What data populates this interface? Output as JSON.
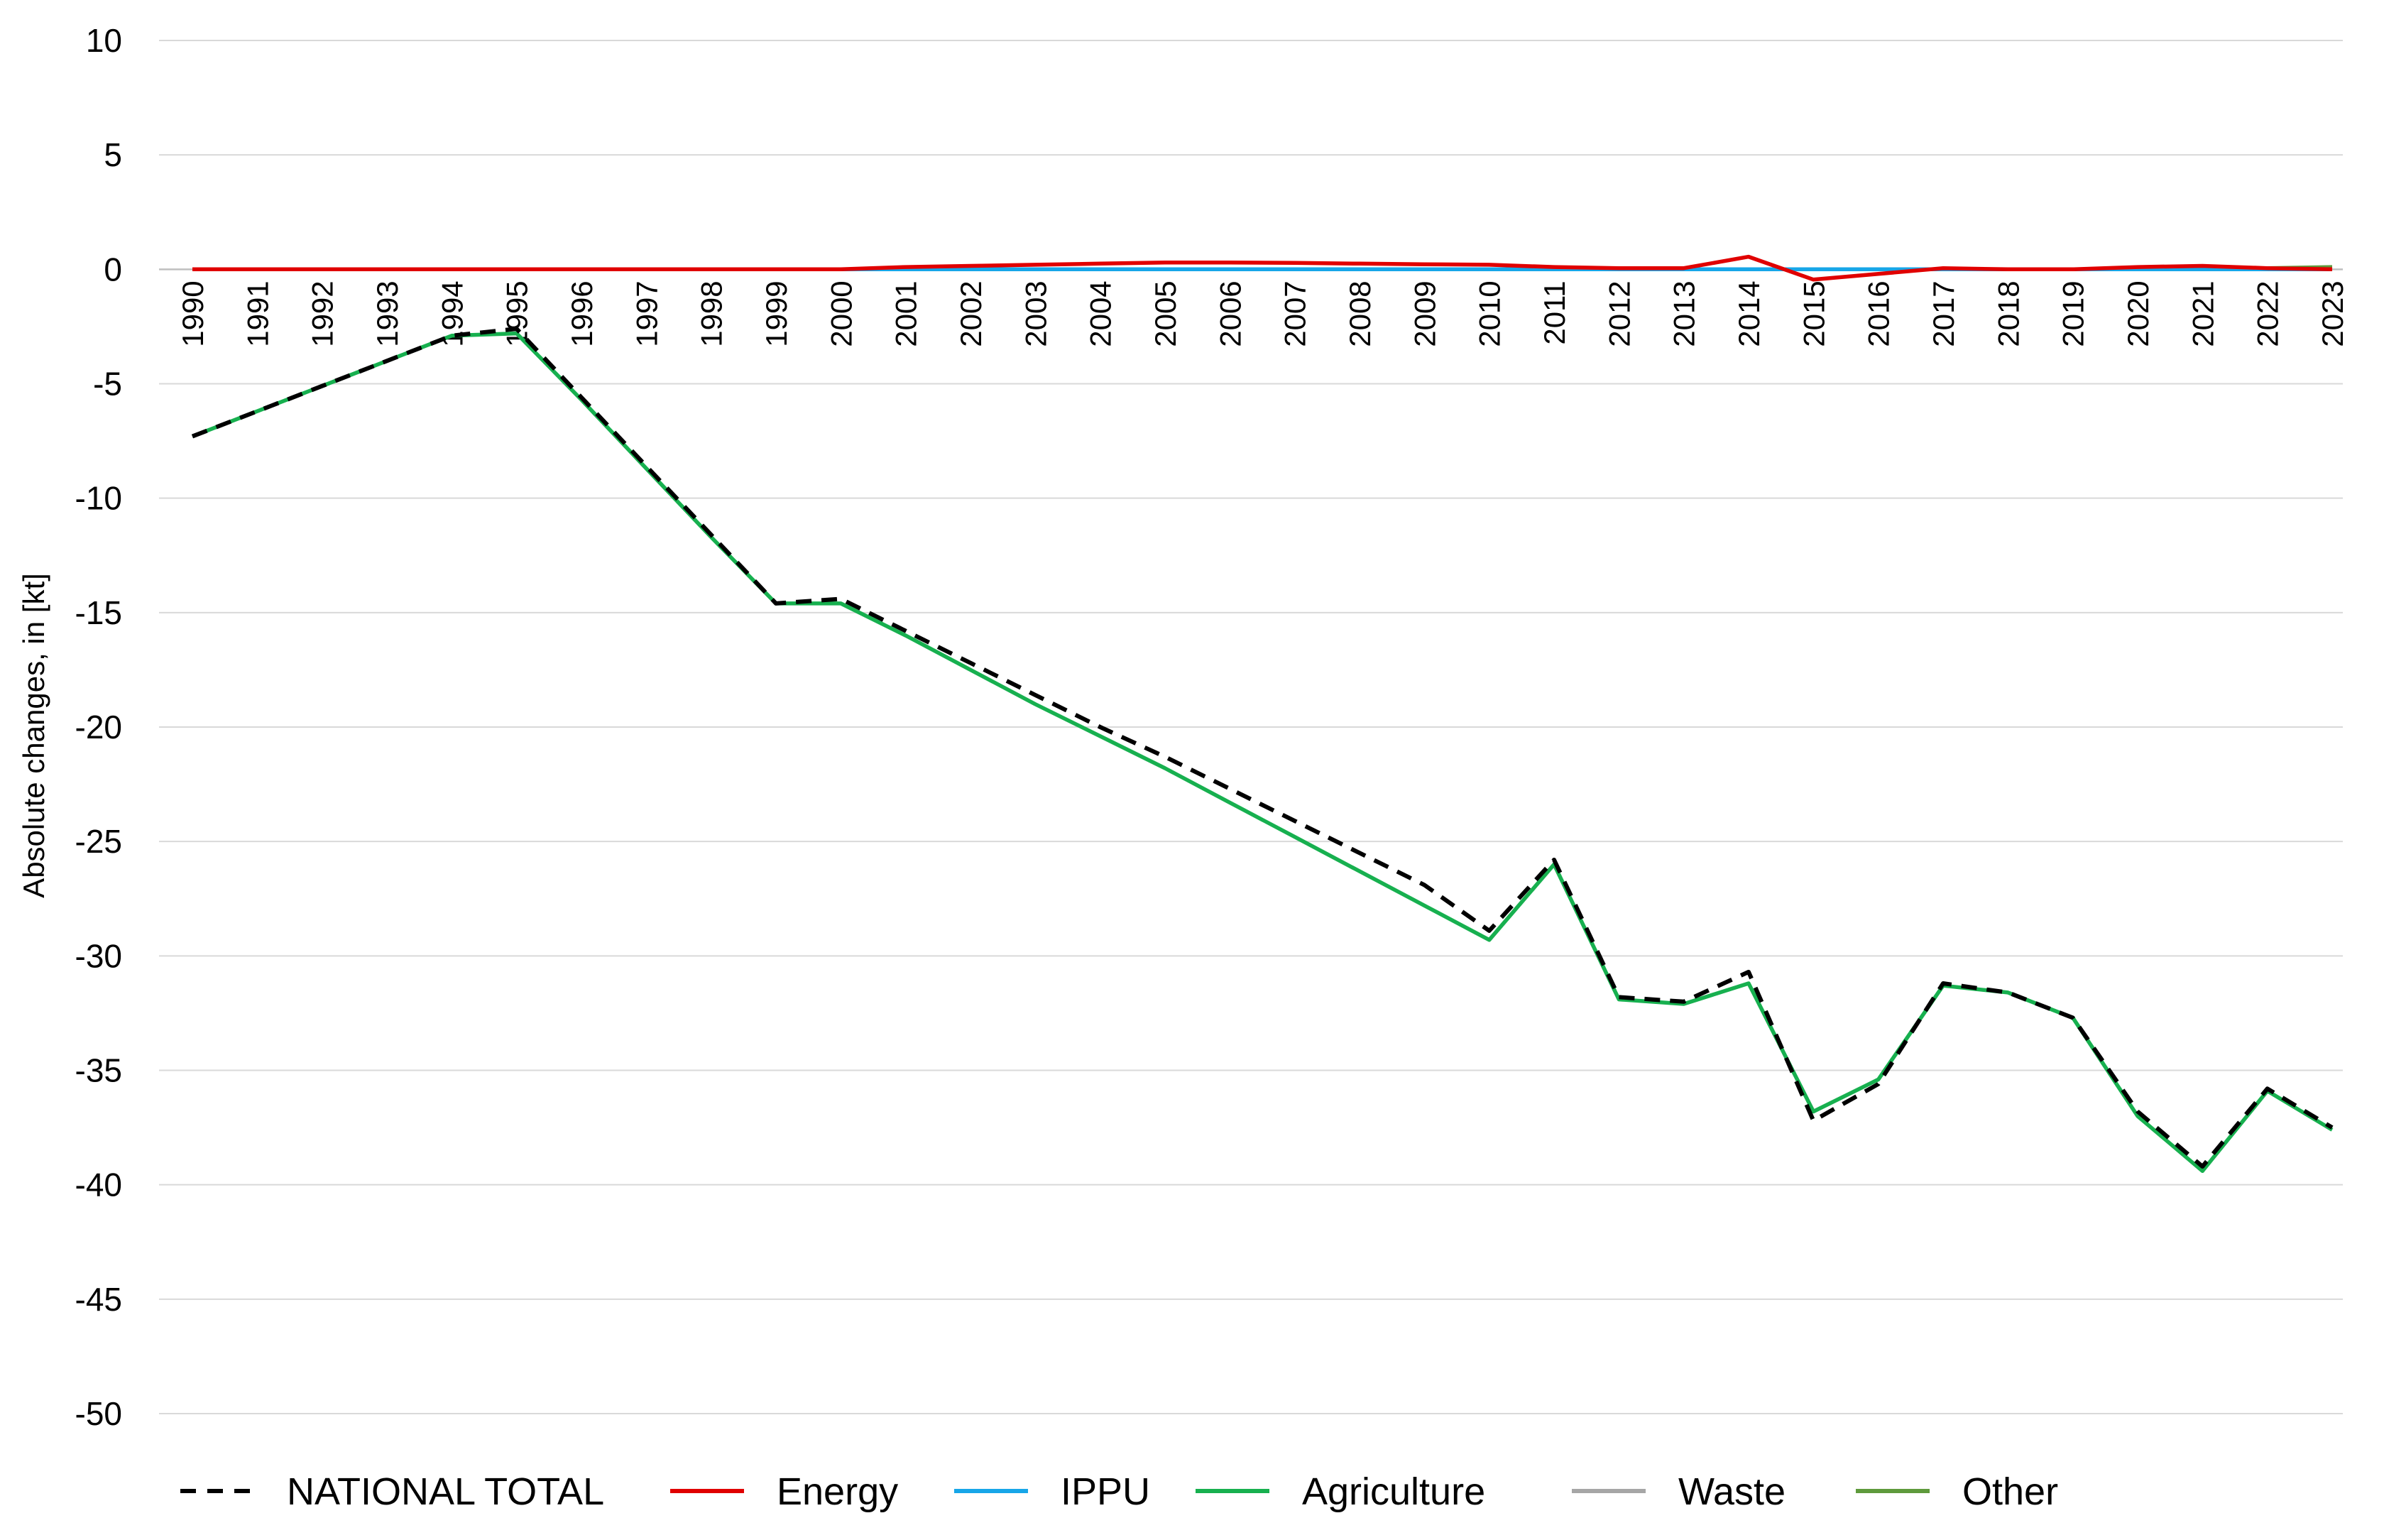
{
  "chart_data": {
    "type": "line",
    "title": "",
    "xlabel": "",
    "ylabel": "Absolute changes, in [kt]",
    "ylim": [
      -50,
      10
    ],
    "yticks": [
      10,
      5,
      0,
      -5,
      -10,
      -15,
      -20,
      -25,
      -30,
      -35,
      -40,
      -45,
      -50
    ],
    "grid": true,
    "legend_position": "bottom",
    "categories": [
      "1990",
      "1991",
      "1992",
      "1993",
      "1994",
      "1995",
      "1996",
      "1997",
      "1998",
      "1999",
      "2000",
      "2001",
      "2002",
      "2003",
      "2004",
      "2005",
      "2006",
      "2007",
      "2008",
      "2009",
      "2010",
      "2011",
      "2012",
      "2013",
      "2014",
      "2015",
      "2016",
      "2017",
      "2018",
      "2019",
      "2020",
      "2021",
      "2022",
      "2023"
    ],
    "series": [
      {
        "name": "NATIONAL TOTAL",
        "color": "#000000",
        "dash": true,
        "values": [
          -7.3,
          -6.2,
          -5.1,
          -4.0,
          -2.9,
          -2.6,
          -5.6,
          -8.6,
          -11.6,
          -14.6,
          -14.4,
          -15.8,
          -17.2,
          -18.6,
          -20.0,
          -21.3,
          -22.7,
          -24.1,
          -25.5,
          -26.9,
          -28.9,
          -25.8,
          -31.8,
          -32.0,
          -30.7,
          -37.2,
          -35.6,
          -31.2,
          -31.6,
          -32.7,
          -36.8,
          -39.2,
          -35.8,
          -37.5
        ]
      },
      {
        "name": "Energy",
        "color": "#e00000",
        "dash": false,
        "values": [
          0,
          0,
          0,
          0,
          0,
          0,
          0,
          0,
          0,
          0,
          0,
          0.1,
          0.15,
          0.2,
          0.25,
          0.3,
          0.3,
          0.28,
          0.25,
          0.22,
          0.2,
          0.1,
          0.05,
          0.05,
          0.55,
          -0.45,
          -0.2,
          0.05,
          0,
          0,
          0.1,
          0.15,
          0.05,
          0
        ]
      },
      {
        "name": "IPPU",
        "color": "#17a6e8",
        "dash": false,
        "values": [
          0,
          0,
          0,
          0,
          0,
          0,
          0,
          0,
          0,
          0,
          0,
          0,
          0,
          0,
          0,
          0,
          0,
          0,
          0,
          0,
          0,
          0,
          0,
          0,
          0,
          0,
          0,
          0,
          0,
          0,
          0,
          0,
          0,
          0
        ]
      },
      {
        "name": "Agriculture",
        "color": "#17b04f",
        "dash": false,
        "values": [
          -7.3,
          -6.2,
          -5.1,
          -4.0,
          -2.9,
          -2.8,
          -5.7,
          -8.7,
          -11.7,
          -14.6,
          -14.6,
          -16.0,
          -17.5,
          -19.0,
          -20.4,
          -21.8,
          -23.3,
          -24.8,
          -26.3,
          -27.8,
          -29.3,
          -26.0,
          -31.9,
          -32.1,
          -31.2,
          -36.8,
          -35.4,
          -31.3,
          -31.6,
          -32.7,
          -37.0,
          -39.4,
          -35.9,
          -37.6
        ]
      },
      {
        "name": "Waste",
        "color": "#a6a6a6",
        "dash": false,
        "values": [
          0,
          0,
          0,
          0,
          0,
          0,
          0,
          0,
          0,
          0,
          0,
          0,
          0,
          0,
          0,
          0,
          0,
          0,
          0,
          0,
          0,
          0,
          0,
          0,
          0,
          0,
          0,
          0,
          0,
          0,
          0,
          0,
          0,
          0
        ]
      },
      {
        "name": "Other",
        "color": "#5e9a3c",
        "dash": false,
        "values": [
          0,
          0,
          0,
          0,
          0,
          0,
          0,
          0,
          0,
          0,
          0,
          0,
          0,
          0,
          0,
          0,
          0,
          0,
          0,
          0,
          0,
          0,
          0,
          0,
          0,
          0,
          0,
          0,
          0,
          0,
          0,
          0,
          0.05,
          0.1
        ]
      }
    ]
  }
}
